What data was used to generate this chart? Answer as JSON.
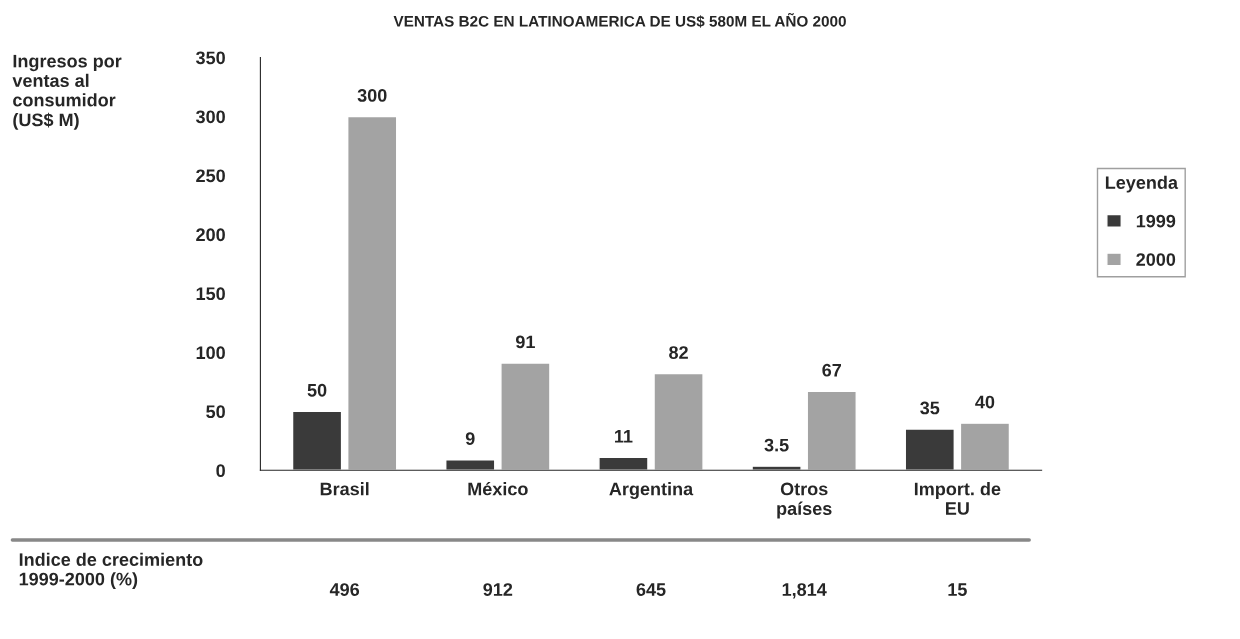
{
  "chart_data": {
    "type": "bar",
    "title": "VENTAS B2C EN LATINOAMERICA DE US$ 580M EL AÑO 2000",
    "ylabel": "Ingresos por\nventas al\nconsumidor\n(US$ M)",
    "categories": [
      "Brasil",
      "México",
      "Argentina",
      "Otros\npaíses",
      "Import. de\nEU"
    ],
    "series": [
      {
        "name": "1999",
        "color": "#3a3a3a",
        "values": [
          50,
          9,
          11,
          3.5,
          35
        ]
      },
      {
        "name": "2000",
        "color": "#a3a3a3",
        "values": [
          300,
          91,
          82,
          67,
          40
        ]
      }
    ],
    "ylim": [
      0,
      350
    ],
    "yticks": [
      0,
      50,
      100,
      150,
      200,
      250,
      300,
      350
    ],
    "data_labels": true,
    "grid": false,
    "legend": "right",
    "legend_title": "Leyenda",
    "annotations": [
      "Indice de crecimiento\n1999-2000 (%)",
      "496",
      "912",
      "645",
      "1,814",
      "15"
    ]
  }
}
